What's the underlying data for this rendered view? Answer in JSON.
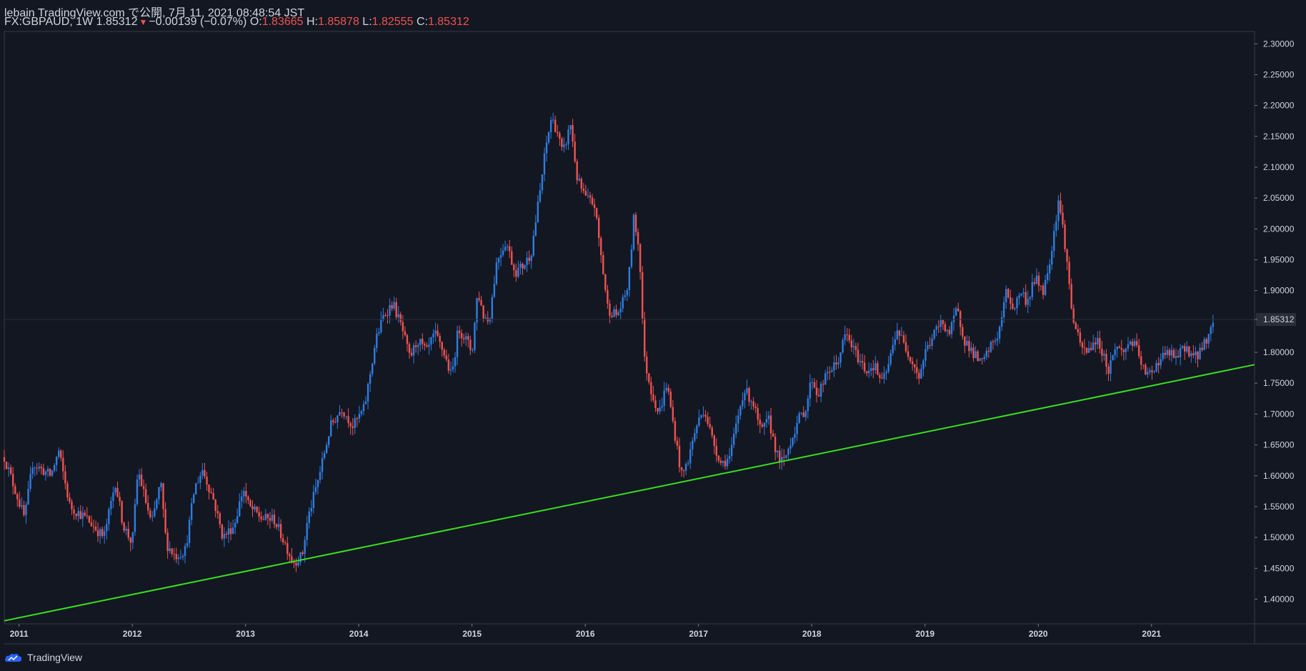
{
  "header": {
    "published": "lebain TradingView.com で公開, 7月 11, 2021 08:48:54 JST",
    "symbol": "FX:GBPAUD, 1W",
    "last": "1.85312",
    "change": "−0.00139 (−0.07%)",
    "o_label": "O:",
    "o_value": "1.83665",
    "h_label": "H:",
    "h_value": "1.85878",
    "l_label": "L:",
    "l_value": "1.82555",
    "c_label": "C:",
    "c_value": "1.85312"
  },
  "footer": {
    "brand": "TradingView"
  },
  "colors": {
    "background": "#131722",
    "axis_text": "#d1d4dc",
    "up": "#2f7de1",
    "down": "#ef5350",
    "trendline": "#38e01f",
    "price_tag_bg": "#2a2e39"
  },
  "chart_data": {
    "type": "candlestick",
    "symbol": "FX:GBPAUD",
    "timeframe": "1W",
    "last_price": 1.85312,
    "x_tick_labels": [
      "2011",
      "2012",
      "2013",
      "2014",
      "2015",
      "2016",
      "2017",
      "2018",
      "2019",
      "2020",
      "2021"
    ],
    "y_tick_labels": [
      "2.30000",
      "2.25000",
      "2.20000",
      "2.15000",
      "2.10000",
      "2.05000",
      "2.00000",
      "1.95000",
      "1.90000",
      "1.85312",
      "1.80000",
      "1.75000",
      "1.70000",
      "1.65000",
      "1.60000",
      "1.55000",
      "1.50000",
      "1.45000",
      "1.40000"
    ],
    "ylim": [
      1.36,
      2.32
    ],
    "price_path": [
      [
        2010.87,
        1.63
      ],
      [
        2011.05,
        1.53
      ],
      [
        2011.12,
        1.62
      ],
      [
        2011.28,
        1.6
      ],
      [
        2011.35,
        1.64
      ],
      [
        2011.45,
        1.55
      ],
      [
        2011.6,
        1.53
      ],
      [
        2011.75,
        1.5
      ],
      [
        2011.85,
        1.59
      ],
      [
        2011.92,
        1.52
      ],
      [
        2012.0,
        1.49
      ],
      [
        2012.05,
        1.61
      ],
      [
        2012.17,
        1.52
      ],
      [
        2012.25,
        1.59
      ],
      [
        2012.3,
        1.49
      ],
      [
        2012.38,
        1.47
      ],
      [
        2012.47,
        1.48
      ],
      [
        2012.55,
        1.58
      ],
      [
        2012.62,
        1.61
      ],
      [
        2012.72,
        1.56
      ],
      [
        2012.8,
        1.5
      ],
      [
        2012.9,
        1.52
      ],
      [
        2012.98,
        1.58
      ],
      [
        2013.03,
        1.55
      ],
      [
        2013.15,
        1.53
      ],
      [
        2013.25,
        1.53
      ],
      [
        2013.35,
        1.49
      ],
      [
        2013.42,
        1.46
      ],
      [
        2013.5,
        1.47
      ],
      [
        2013.55,
        1.53
      ],
      [
        2013.65,
        1.6
      ],
      [
        2013.75,
        1.68
      ],
      [
        2013.85,
        1.71
      ],
      [
        2013.95,
        1.68
      ],
      [
        2014.05,
        1.71
      ],
      [
        2014.15,
        1.82
      ],
      [
        2014.22,
        1.86
      ],
      [
        2014.3,
        1.88
      ],
      [
        2014.38,
        1.84
      ],
      [
        2014.45,
        1.79
      ],
      [
        2014.52,
        1.82
      ],
      [
        2014.6,
        1.8
      ],
      [
        2014.67,
        1.83
      ],
      [
        2014.75,
        1.8
      ],
      [
        2014.82,
        1.76
      ],
      [
        2014.88,
        1.84
      ],
      [
        2014.95,
        1.82
      ],
      [
        2015.0,
        1.8
      ],
      [
        2015.05,
        1.9
      ],
      [
        2015.1,
        1.86
      ],
      [
        2015.15,
        1.85
      ],
      [
        2015.22,
        1.95
      ],
      [
        2015.3,
        1.98
      ],
      [
        2015.38,
        1.93
      ],
      [
        2015.45,
        1.94
      ],
      [
        2015.52,
        1.96
      ],
      [
        2015.6,
        2.06
      ],
      [
        2015.65,
        2.13
      ],
      [
        2015.7,
        2.18
      ],
      [
        2015.75,
        2.16
      ],
      [
        2015.8,
        2.12
      ],
      [
        2015.87,
        2.17
      ],
      [
        2015.93,
        2.08
      ],
      [
        2016.0,
        2.05
      ],
      [
        2016.08,
        2.04
      ],
      [
        2016.13,
        1.97
      ],
      [
        2016.2,
        1.87
      ],
      [
        2016.28,
        1.86
      ],
      [
        2016.33,
        1.88
      ],
      [
        2016.38,
        1.91
      ],
      [
        2016.43,
        2.02
      ],
      [
        2016.48,
        1.96
      ],
      [
        2016.52,
        1.79
      ],
      [
        2016.58,
        1.74
      ],
      [
        2016.65,
        1.7
      ],
      [
        2016.72,
        1.75
      ],
      [
        2016.78,
        1.68
      ],
      [
        2016.85,
        1.6
      ],
      [
        2016.9,
        1.62
      ],
      [
        2016.98,
        1.68
      ],
      [
        2017.05,
        1.71
      ],
      [
        2017.12,
        1.66
      ],
      [
        2017.2,
        1.62
      ],
      [
        2017.28,
        1.63
      ],
      [
        2017.33,
        1.68
      ],
      [
        2017.4,
        1.74
      ],
      [
        2017.48,
        1.72
      ],
      [
        2017.55,
        1.67
      ],
      [
        2017.62,
        1.69
      ],
      [
        2017.7,
        1.63
      ],
      [
        2017.75,
        1.62
      ],
      [
        2017.82,
        1.66
      ],
      [
        2017.88,
        1.69
      ],
      [
        2017.95,
        1.71
      ],
      [
        2018.0,
        1.76
      ],
      [
        2018.05,
        1.73
      ],
      [
        2018.15,
        1.77
      ],
      [
        2018.22,
        1.78
      ],
      [
        2018.3,
        1.83
      ],
      [
        2018.38,
        1.8
      ],
      [
        2018.48,
        1.77
      ],
      [
        2018.55,
        1.78
      ],
      [
        2018.62,
        1.75
      ],
      [
        2018.68,
        1.78
      ],
      [
        2018.75,
        1.84
      ],
      [
        2018.82,
        1.81
      ],
      [
        2018.88,
        1.79
      ],
      [
        2018.95,
        1.76
      ],
      [
        2019.0,
        1.8
      ],
      [
        2019.08,
        1.83
      ],
      [
        2019.15,
        1.85
      ],
      [
        2019.22,
        1.83
      ],
      [
        2019.28,
        1.87
      ],
      [
        2019.35,
        1.82
      ],
      [
        2019.42,
        1.8
      ],
      [
        2019.5,
        1.78
      ],
      [
        2019.58,
        1.81
      ],
      [
        2019.65,
        1.83
      ],
      [
        2019.72,
        1.9
      ],
      [
        2019.78,
        1.87
      ],
      [
        2019.85,
        1.9
      ],
      [
        2019.9,
        1.88
      ],
      [
        2019.97,
        1.92
      ],
      [
        2020.05,
        1.9
      ],
      [
        2020.12,
        1.97
      ],
      [
        2020.18,
        2.05
      ],
      [
        2020.24,
        1.97
      ],
      [
        2020.3,
        1.86
      ],
      [
        2020.37,
        1.81
      ],
      [
        2020.43,
        1.8
      ],
      [
        2020.5,
        1.82
      ],
      [
        2020.55,
        1.81
      ],
      [
        2020.62,
        1.77
      ],
      [
        2020.68,
        1.81
      ],
      [
        2020.75,
        1.8
      ],
      [
        2020.82,
        1.82
      ],
      [
        2020.88,
        1.8
      ],
      [
        2020.95,
        1.76
      ],
      [
        2021.0,
        1.77
      ],
      [
        2021.08,
        1.79
      ],
      [
        2021.15,
        1.8
      ],
      [
        2021.22,
        1.79
      ],
      [
        2021.3,
        1.81
      ],
      [
        2021.38,
        1.79
      ],
      [
        2021.42,
        1.8
      ],
      [
        2021.48,
        1.82
      ],
      [
        2021.52,
        1.835
      ],
      [
        2021.55,
        1.853
      ]
    ],
    "trendline": {
      "color": "#38e01f",
      "points": [
        [
          2010.87,
          1.365
        ],
        [
          2021.91,
          1.78
        ]
      ]
    },
    "grid": false,
    "legend": "none"
  }
}
